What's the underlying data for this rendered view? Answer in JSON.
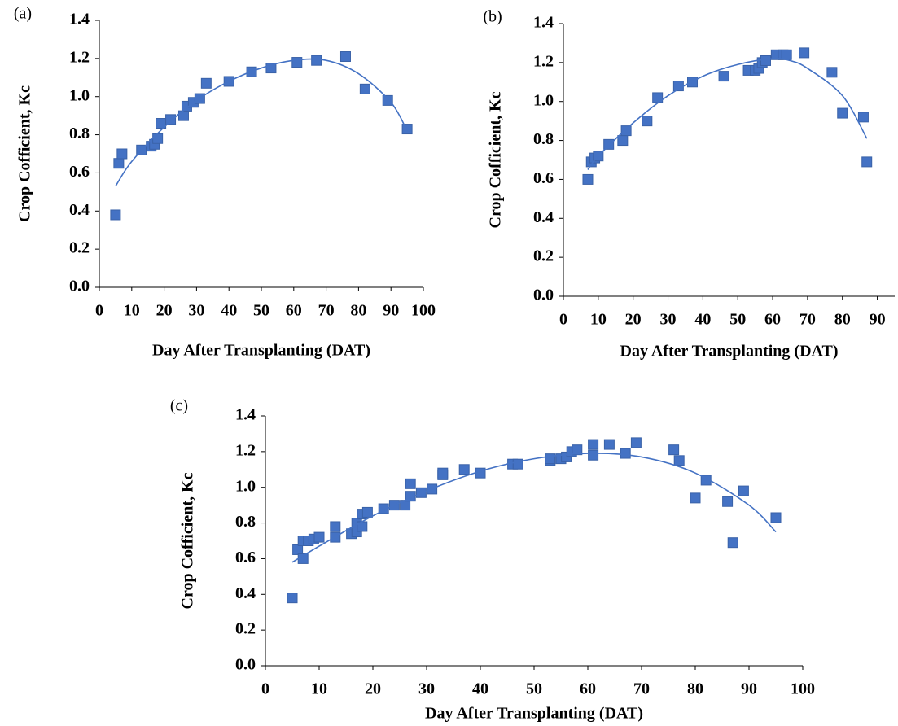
{
  "chart_data": [
    {
      "type": "scatter",
      "label": "(a)",
      "x_label": "Day After Transplanting (DAT)",
      "y_label": "Crop Cofficient, Kc",
      "xlim": [
        0,
        100
      ],
      "xticks": [
        0,
        10,
        20,
        30,
        40,
        50,
        60,
        70,
        80,
        90,
        100
      ],
      "ylim": [
        0,
        1.4
      ],
      "yticks": [
        {
          "value": 0,
          "label": "0.0"
        },
        0.2,
        0.4,
        0.6,
        0.8,
        {
          "value": 1,
          "label": "1.0"
        },
        1.2,
        1.4
      ],
      "series": [
        {
          "color": "#4472c4",
          "marker": "square",
          "x": [
            5,
            6,
            7,
            13,
            16,
            17,
            18,
            19,
            22,
            26,
            27,
            29,
            31,
            33,
            40,
            47,
            53,
            61,
            67,
            76,
            82,
            89,
            95
          ],
          "values": [
            0.38,
            0.65,
            0.7,
            0.72,
            0.74,
            0.75,
            0.78,
            0.86,
            0.88,
            0.9,
            0.95,
            0.97,
            0.99,
            1.07,
            1.08,
            1.13,
            1.15,
            1.18,
            1.19,
            1.21,
            1.04,
            0.98,
            0.83
          ]
        },
        {
          "color": "#4472c4",
          "marker": "line",
          "x": [
            5,
            10,
            20,
            30,
            40,
            50,
            60,
            70,
            80,
            90,
            95
          ],
          "values": [
            0.53,
            0.66,
            0.84,
            0.98,
            1.08,
            1.15,
            1.19,
            1.19,
            1.12,
            0.97,
            0.82
          ]
        }
      ]
    },
    {
      "type": "scatter",
      "label": "(b)",
      "x_label": "Day After Transplanting (DAT)",
      "y_label": "Crop Cofficient, Kc",
      "xlim": [
        0,
        95
      ],
      "xticks": [
        0,
        10,
        20,
        30,
        40,
        50,
        60,
        70,
        80,
        90
      ],
      "ylim": [
        0,
        1.4
      ],
      "yticks": [
        {
          "value": 0,
          "label": "0.0"
        },
        0.2,
        0.4,
        0.6,
        0.8,
        {
          "value": 1,
          "label": "1.0"
        },
        1.2,
        1.4
      ],
      "series": [
        {
          "color": "#4472c4",
          "marker": "square",
          "x": [
            7,
            8,
            9,
            10,
            13,
            17,
            18,
            24,
            27,
            33,
            37,
            46,
            53,
            55,
            56,
            57,
            58,
            61,
            63,
            64,
            69,
            77,
            80,
            86,
            87
          ],
          "values": [
            0.6,
            0.69,
            0.71,
            0.72,
            0.78,
            0.8,
            0.85,
            0.9,
            1.02,
            1.08,
            1.1,
            1.13,
            1.16,
            1.16,
            1.17,
            1.2,
            1.21,
            1.24,
            1.24,
            1.24,
            1.25,
            1.15,
            0.94,
            0.92,
            0.69
          ]
        },
        {
          "color": "#4472c4",
          "marker": "line",
          "x": [
            7,
            10,
            20,
            30,
            40,
            50,
            60,
            65,
            70,
            80,
            87
          ],
          "values": [
            0.65,
            0.72,
            0.89,
            1.03,
            1.13,
            1.19,
            1.22,
            1.21,
            1.17,
            1.03,
            0.81
          ]
        }
      ]
    },
    {
      "type": "scatter",
      "label": "(c)",
      "x_label": "Day After Transplanting (DAT)",
      "y_label": "Crop Cofficient, Kc",
      "xlim": [
        0,
        100
      ],
      "xticks": [
        0,
        10,
        20,
        30,
        40,
        50,
        60,
        70,
        80,
        90,
        100
      ],
      "ylim": [
        0,
        1.4
      ],
      "yticks": [
        {
          "value": 0,
          "label": "0.0"
        },
        0.2,
        0.4,
        0.6,
        0.8,
        {
          "value": 1,
          "label": "1.0"
        },
        1.2,
        1.4
      ],
      "series": [
        {
          "color": "#4472c4",
          "marker": "square",
          "x": [
            5,
            6,
            7,
            7,
            8,
            9,
            10,
            13,
            13,
            16,
            17,
            17,
            18,
            18,
            19,
            22,
            24,
            26,
            27,
            27,
            29,
            31,
            33,
            33,
            37,
            40,
            46,
            47,
            53,
            53,
            55,
            56,
            57,
            58,
            61,
            61,
            64,
            67,
            69,
            76,
            77,
            80,
            82,
            86,
            87,
            89,
            95
          ],
          "values": [
            0.38,
            0.65,
            0.7,
            0.6,
            0.7,
            0.71,
            0.72,
            0.78,
            0.72,
            0.74,
            0.8,
            0.75,
            0.85,
            0.78,
            0.86,
            0.88,
            0.9,
            0.9,
            1.02,
            0.95,
            0.97,
            0.99,
            1.08,
            1.07,
            1.1,
            1.08,
            1.13,
            1.13,
            1.15,
            1.16,
            1.16,
            1.17,
            1.2,
            1.21,
            1.24,
            1.18,
            1.24,
            1.19,
            1.25,
            1.21,
            1.15,
            0.94,
            1.04,
            0.92,
            0.69,
            0.98,
            0.83
          ]
        },
        {
          "color": "#4472c4",
          "marker": "line",
          "x": [
            5,
            10,
            20,
            30,
            40,
            50,
            60,
            70,
            80,
            90,
            95
          ],
          "values": [
            0.58,
            0.67,
            0.84,
            0.98,
            1.09,
            1.16,
            1.19,
            1.17,
            1.08,
            0.9,
            0.75
          ]
        }
      ]
    }
  ]
}
